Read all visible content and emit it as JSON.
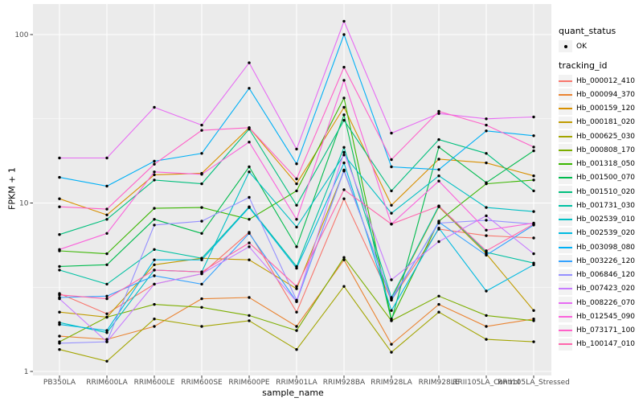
{
  "figure": {
    "bg": "#FFFFFF",
    "panel_bg": "#EBEBEB",
    "grid_color": "#FFFFFF",
    "tick_color": "#333333",
    "tick_label_color": "#4D4D4D",
    "point_color": "#000000"
  },
  "chart_data": {
    "type": "line",
    "title": "",
    "xlabel": "sample_name",
    "ylabel": "FPKM + 1",
    "y_scale": "log10",
    "y_ticks": [
      1,
      10,
      100
    ],
    "y_minor_ticks": [
      3.162,
      31.62
    ],
    "ylim": [
      0.97,
      152
    ],
    "grid": true,
    "legend_position": "right",
    "point_shape": "filled-dot",
    "categories": [
      "PB350LA",
      "RRIM600LA",
      "RRIM600LE",
      "RRIM600SE",
      "RRIM600PE",
      "RRIM901LA",
      "RRIM928BA",
      "RRIM928LA",
      "RRIM928LE",
      "RRII105LA_Control",
      "RRII105LA_Stressed"
    ],
    "series": [
      {
        "name": "Hb_000012_410",
        "color": "#F8766D",
        "values": [
          2.9,
          2.2,
          3.3,
          3.8,
          6.7,
          2.25,
          10.6,
          2.65,
          7.0,
          6.4,
          6.2
        ]
      },
      {
        "name": "Hb_000094_370",
        "color": "#EA8331",
        "values": [
          1.62,
          1.55,
          1.85,
          2.7,
          2.75,
          1.85,
          4.6,
          1.45,
          2.5,
          1.85,
          2.05
        ]
      },
      {
        "name": "Hb_000159_120",
        "color": "#D89000",
        "values": [
          10.6,
          8.5,
          14.7,
          15.0,
          28.0,
          13.0,
          37.0,
          9.7,
          18.2,
          17.3,
          14.5
        ]
      },
      {
        "name": "Hb_000181_020",
        "color": "#C09B00",
        "values": [
          2.25,
          2.1,
          4.3,
          4.7,
          4.6,
          3.1,
          15.5,
          2.7,
          9.5,
          5.0,
          2.3
        ]
      },
      {
        "name": "Hb_000625_030",
        "color": "#A3A500",
        "values": [
          1.35,
          1.15,
          2.05,
          1.85,
          2.0,
          1.35,
          3.2,
          1.3,
          2.25,
          1.55,
          1.5
        ]
      },
      {
        "name": "Hb_000808_170",
        "color": "#7CAE00",
        "values": [
          1.5,
          2.1,
          2.5,
          2.4,
          2.15,
          1.75,
          4.75,
          2.0,
          2.8,
          2.15,
          2.0
        ]
      },
      {
        "name": "Hb_001318_050",
        "color": "#39B600",
        "values": [
          5.2,
          5.0,
          9.3,
          9.4,
          8.0,
          11.8,
          42.0,
          2.05,
          7.8,
          13.0,
          13.7
        ]
      },
      {
        "name": "Hb_001500_070",
        "color": "#00BB4E",
        "values": [
          4.2,
          4.3,
          8.0,
          6.6,
          16.4,
          5.5,
          33.4,
          2.0,
          21.5,
          13.2,
          20.4
        ]
      },
      {
        "name": "Hb_001510_020",
        "color": "#00BF7D",
        "values": [
          6.5,
          8.0,
          13.7,
          13.0,
          27.5,
          9.7,
          31.0,
          11.8,
          23.8,
          19.7,
          11.8
        ]
      },
      {
        "name": "Hb_001731_030",
        "color": "#00C1A3",
        "values": [
          4.0,
          3.3,
          5.3,
          4.7,
          9.5,
          4.2,
          21.4,
          2.75,
          9.6,
          5.1,
          4.4
        ]
      },
      {
        "name": "Hb_002539_010",
        "color": "#00BFC4",
        "values": [
          1.95,
          1.7,
          4.0,
          3.9,
          15.3,
          7.2,
          19.3,
          8.7,
          14.5,
          9.4,
          8.9
        ]
      },
      {
        "name": "Hb_002539_020",
        "color": "#00BAE0",
        "values": [
          1.9,
          1.75,
          4.6,
          4.6,
          9.4,
          4.1,
          17.3,
          2.3,
          7.1,
          3.0,
          4.3
        ]
      },
      {
        "name": "Hb_003098_080",
        "color": "#00B0F6",
        "values": [
          14.2,
          12.6,
          17.7,
          19.7,
          48.0,
          17.1,
          100.0,
          16.4,
          15.8,
          26.8,
          25.1
        ]
      },
      {
        "name": "Hb_003226_120",
        "color": "#35A2FF",
        "values": [
          2.75,
          2.8,
          3.7,
          3.3,
          6.6,
          2.6,
          15.7,
          2.65,
          7.7,
          4.9,
          7.4
        ]
      },
      {
        "name": "Hb_006846_120",
        "color": "#9590FF",
        "values": [
          1.47,
          1.5,
          7.4,
          7.8,
          10.8,
          2.65,
          15.5,
          2.7,
          7.6,
          7.9,
          7.5
        ]
      },
      {
        "name": "Hb_007423_020",
        "color": "#C77CFF",
        "values": [
          2.7,
          1.5,
          3.3,
          3.8,
          5.5,
          2.6,
          20.0,
          3.5,
          5.9,
          8.4,
          5.0
        ]
      },
      {
        "name": "Hb_008226_070",
        "color": "#E76BF3",
        "values": [
          18.5,
          18.5,
          37.0,
          29.0,
          68.0,
          20.9,
          120.0,
          26.0,
          34.0,
          31.6,
          32.4
        ]
      },
      {
        "name": "Hb_012545_090",
        "color": "#FA62DB",
        "values": [
          5.3,
          6.6,
          15.3,
          14.8,
          23.0,
          8.0,
          53.5,
          7.5,
          13.5,
          6.9,
          7.6
        ]
      },
      {
        "name": "Hb_073171_100",
        "color": "#FF61C9",
        "values": [
          9.5,
          9.2,
          17.0,
          27.0,
          28.0,
          13.9,
          64.0,
          18.1,
          35.0,
          29.0,
          21.5
        ]
      },
      {
        "name": "Hb_100147_010",
        "color": "#FF65AC",
        "values": [
          2.85,
          2.7,
          4.0,
          3.9,
          5.8,
          3.2,
          12.0,
          7.5,
          9.6,
          5.2,
          7.5
        ]
      }
    ]
  },
  "legend": {
    "quant_status_title": "quant_status",
    "quant_status_items": [
      {
        "label": "OK"
      }
    ],
    "tracking_id_title": "tracking_id"
  }
}
